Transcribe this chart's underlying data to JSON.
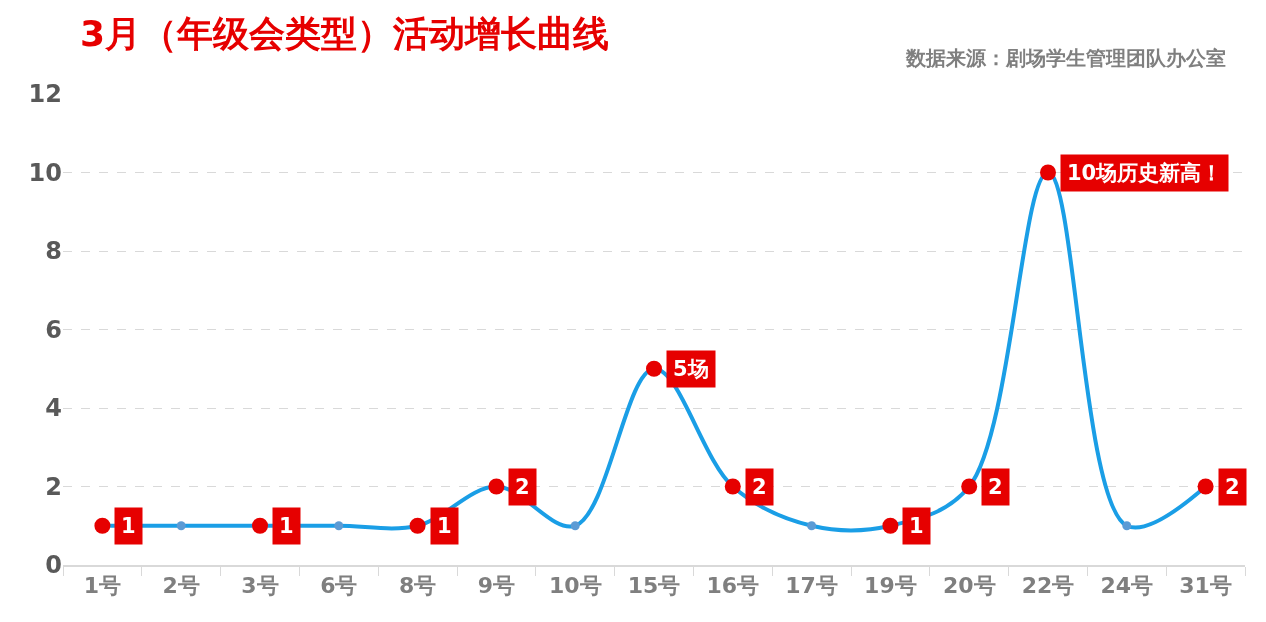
{
  "chart_data": {
    "type": "line",
    "title": "3月（年级会类型）活动增长曲线",
    "annotations": [
      "数据来源：剧场学生管理团队办公室"
    ],
    "categories": [
      "1号",
      "2号",
      "3号",
      "6号",
      "8号",
      "9号",
      "10号",
      "15号",
      "16号",
      "17号",
      "19号",
      "20号",
      "22号",
      "24号",
      "31号"
    ],
    "values": [
      1,
      1,
      1,
      1,
      1,
      2,
      1,
      5,
      2,
      1,
      1,
      2,
      10,
      1,
      2
    ],
    "color": "#1a9ee6",
    "colors": [
      "#e60000",
      "#5b9bd5",
      "#e60000",
      "#5b9bd5",
      "#e60000",
      "#e60000",
      "#5b9bd5",
      "#e60000",
      "#e60000",
      "#5b9bd5",
      "#e60000",
      "#e60000",
      "#e60000",
      "#5b9bd5",
      "#e60000"
    ],
    "value_labels": [
      "1",
      null,
      "1",
      null,
      "1",
      "2",
      null,
      "5场",
      "2",
      null,
      "1",
      "2",
      "10场历史新高！",
      null,
      "2"
    ],
    "ylim": [
      0,
      12
    ],
    "yticks": [
      0,
      2,
      4,
      6,
      8,
      10,
      12
    ],
    "grid": "y",
    "marker": "circle",
    "line_style": "solid"
  }
}
